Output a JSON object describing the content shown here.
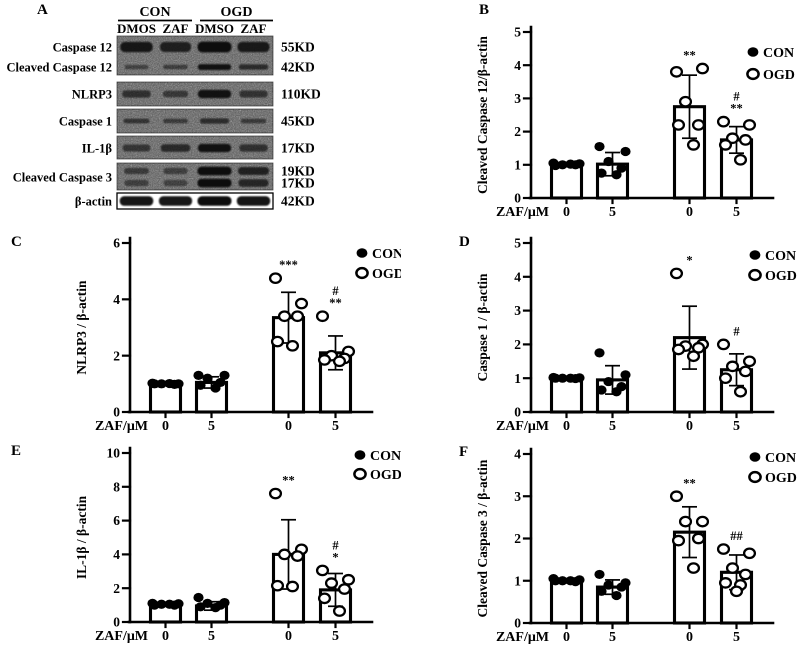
{
  "colors": {
    "ink": "#000000",
    "bar_fill": "#ffffff",
    "blot_bg": "#c9c9c9"
  },
  "panels": {
    "A": {
      "label": "A",
      "group_headers": [
        "CON",
        "OGD"
      ],
      "lane_headers": [
        "DMOS",
        "ZAF",
        "DMSO",
        "ZAF"
      ],
      "boxes": [
        {
          "bg": "noise",
          "rows": [
            {
              "label": "Caspase 12",
              "kd": "55KD",
              "band_h": 9,
              "intensities": [
                0.9,
                0.82,
                1.0,
                0.88
              ]
            },
            {
              "label": "Cleaved Caspase 12",
              "kd": "42KD",
              "band_h": 5,
              "intensities": [
                0.35,
                0.4,
                0.95,
                0.7
              ]
            }
          ]
        },
        {
          "bg": "noise",
          "rows": [
            {
              "label": "NLRP3",
              "kd": "110KD",
              "band_h": 7,
              "intensities": [
                0.65,
                0.45,
                0.95,
                0.62
              ]
            }
          ]
        },
        {
          "bg": "noise",
          "rows": [
            {
              "label": "Caspase 1",
              "kd": "45KD",
              "band_h": 5,
              "intensities": [
                0.5,
                0.42,
                0.68,
                0.44
              ]
            }
          ]
        },
        {
          "bg": "noise",
          "rows": [
            {
              "label": "IL-1β",
              "kd": "17KD",
              "band_h": 7,
              "intensities": [
                0.6,
                0.72,
                0.95,
                0.65
              ]
            }
          ]
        },
        {
          "bg": "noise",
          "label_center": "Cleaved Caspase 3",
          "rows": [
            {
              "kd": "19KD",
              "band_h": 7,
              "intensities": [
                0.42,
                0.38,
                1.0,
                0.8
              ]
            },
            {
              "kd": "17KD",
              "band_h": 7,
              "intensities": [
                0.38,
                0.35,
                1.0,
                0.75
              ]
            }
          ]
        },
        {
          "bg": "white",
          "rows": [
            {
              "label": "β-actin",
              "kd": "42KD",
              "band_h": 8,
              "intensities": [
                0.97,
                0.95,
                1.0,
                0.96
              ]
            }
          ]
        }
      ]
    }
  },
  "chart_data": [
    {
      "panel": "B",
      "type": "bar",
      "ylabel": "Cleaved Caspase 12/β-actin",
      "ylim": [
        0,
        5
      ],
      "yticks": [
        0,
        1,
        2,
        3,
        4,
        5
      ],
      "xlabel": "ZAF/μM",
      "categories": [
        "0",
        "5",
        "0",
        "5"
      ],
      "legend": [
        {
          "label": "CON",
          "marker": "filled"
        },
        {
          "label": "OGD",
          "marker": "open"
        }
      ],
      "bars": [
        {
          "group": "CON",
          "x": "0",
          "mean": 1.0,
          "sd": 0.05,
          "marker": "filled",
          "annotation": [],
          "points": [
            1.05,
            1.03,
            1.0,
            1.0,
            0.98,
            1.02
          ]
        },
        {
          "group": "CON",
          "x": "5",
          "mean": 1.02,
          "sd": 0.35,
          "marker": "filled",
          "annotation": [],
          "points": [
            1.55,
            1.4,
            1.1,
            0.9,
            0.75,
            0.7
          ]
        },
        {
          "group": "OGD",
          "x": "0",
          "mean": 2.75,
          "sd": 0.95,
          "marker": "open",
          "annotation": [
            "**"
          ],
          "points": [
            3.8,
            3.9,
            2.9,
            2.2,
            2.2,
            1.6
          ]
        },
        {
          "group": "OGD",
          "x": "5",
          "mean": 1.75,
          "sd": 0.4,
          "marker": "open",
          "annotation": [
            "#",
            "**"
          ],
          "points": [
            2.3,
            2.2,
            1.8,
            1.75,
            1.6,
            1.15
          ]
        }
      ]
    },
    {
      "panel": "C",
      "type": "bar",
      "ylabel": "NLRP3 / β-actin",
      "ylim": [
        0,
        6
      ],
      "yticks": [
        0,
        2,
        4,
        6
      ],
      "xlabel": "ZAF/μM",
      "categories": [
        "0",
        "5",
        "0",
        "5"
      ],
      "legend": [
        {
          "label": "CON",
          "marker": "filled"
        },
        {
          "label": "OGD",
          "marker": "open"
        }
      ],
      "bars": [
        {
          "group": "CON",
          "x": "0",
          "mean": 1.0,
          "sd": 0.04,
          "marker": "filled",
          "annotation": [],
          "points": [
            1.02,
            1.0,
            1.0,
            0.98,
            1.0,
            1.01
          ]
        },
        {
          "group": "CON",
          "x": "5",
          "mean": 1.05,
          "sd": 0.2,
          "marker": "filled",
          "annotation": [],
          "points": [
            1.3,
            1.3,
            1.2,
            1.05,
            0.95,
            0.85
          ]
        },
        {
          "group": "OGD",
          "x": "0",
          "mean": 3.35,
          "sd": 0.9,
          "marker": "open",
          "annotation": [
            "***"
          ],
          "points": [
            4.75,
            3.85,
            3.4,
            3.4,
            2.5,
            2.35
          ]
        },
        {
          "group": "OGD",
          "x": "5",
          "mean": 2.1,
          "sd": 0.6,
          "marker": "open",
          "annotation": [
            "#",
            "**"
          ],
          "points": [
            3.4,
            2.15,
            2.0,
            1.9,
            1.85,
            1.8
          ]
        }
      ]
    },
    {
      "panel": "D",
      "type": "bar",
      "ylabel": "Caspase 1 / β-actin",
      "ylim": [
        0,
        5
      ],
      "yticks": [
        0,
        1,
        2,
        3,
        4,
        5
      ],
      "xlabel": "ZAF/μM",
      "categories": [
        "0",
        "5",
        "0",
        "5"
      ],
      "legend": [
        {
          "label": "CON",
          "marker": "filled"
        },
        {
          "label": "OGD",
          "marker": "open"
        }
      ],
      "bars": [
        {
          "group": "CON",
          "x": "0",
          "mean": 1.0,
          "sd": 0.04,
          "marker": "filled",
          "annotation": [],
          "points": [
            1.02,
            1.01,
            1.0,
            0.99,
            1.0,
            1.0
          ]
        },
        {
          "group": "CON",
          "x": "5",
          "mean": 0.95,
          "sd": 0.42,
          "marker": "filled",
          "annotation": [],
          "points": [
            1.75,
            1.1,
            0.9,
            0.75,
            0.65,
            0.6
          ]
        },
        {
          "group": "OGD",
          "x": "0",
          "mean": 2.2,
          "sd": 0.93,
          "marker": "open",
          "annotation": [
            "*"
          ],
          "points": [
            4.1,
            2.0,
            1.95,
            1.9,
            1.85,
            1.65
          ]
        },
        {
          "group": "OGD",
          "x": "5",
          "mean": 1.25,
          "sd": 0.47,
          "marker": "open",
          "annotation": [
            "#"
          ],
          "points": [
            2.0,
            1.5,
            1.35,
            1.2,
            1.0,
            0.6
          ]
        }
      ]
    },
    {
      "panel": "E",
      "type": "bar",
      "ylabel": "IL-1β / β-actin",
      "ylim": [
        0,
        10
      ],
      "yticks": [
        0,
        2,
        4,
        6,
        8,
        10
      ],
      "xlabel": "ZAF/μM",
      "categories": [
        "0",
        "5",
        "0",
        "5"
      ],
      "legend": [
        {
          "label": "CON",
          "marker": "filled"
        },
        {
          "label": "OGD",
          "marker": "open"
        }
      ],
      "bars": [
        {
          "group": "CON",
          "x": "0",
          "mean": 1.05,
          "sd": 0.07,
          "marker": "filled",
          "annotation": [],
          "points": [
            1.1,
            1.08,
            1.05,
            1.0,
            1.0,
            1.05
          ]
        },
        {
          "group": "CON",
          "x": "5",
          "mean": 0.95,
          "sd": 0.25,
          "marker": "filled",
          "annotation": [],
          "points": [
            1.45,
            1.15,
            1.1,
            1.0,
            0.9,
            0.85
          ]
        },
        {
          "group": "OGD",
          "x": "0",
          "mean": 4.0,
          "sd": 2.05,
          "marker": "open",
          "annotation": [
            "**"
          ],
          "points": [
            7.6,
            4.3,
            4.0,
            3.9,
            2.15,
            2.1
          ]
        },
        {
          "group": "OGD",
          "x": "5",
          "mean": 1.9,
          "sd": 0.97,
          "marker": "open",
          "annotation": [
            "#",
            "*"
          ],
          "points": [
            3.05,
            2.5,
            2.3,
            1.95,
            1.4,
            0.65
          ]
        }
      ]
    },
    {
      "panel": "F",
      "type": "bar",
      "ylabel": "Cleaved Caspase 3 / β-actin",
      "ylim": [
        0,
        4
      ],
      "yticks": [
        0,
        1,
        2,
        3,
        4
      ],
      "xlabel": "ZAF/μM",
      "categories": [
        "0",
        "5",
        "0",
        "5"
      ],
      "legend": [
        {
          "label": "CON",
          "marker": "filled"
        },
        {
          "label": "OGD",
          "marker": "open"
        }
      ],
      "bars": [
        {
          "group": "CON",
          "x": "0",
          "mean": 1.0,
          "sd": 0.05,
          "marker": "filled",
          "annotation": [],
          "points": [
            1.05,
            1.02,
            1.0,
            0.98,
            1.0,
            1.0
          ]
        },
        {
          "group": "CON",
          "x": "5",
          "mean": 0.85,
          "sd": 0.17,
          "marker": "filled",
          "annotation": [],
          "points": [
            1.15,
            0.95,
            0.9,
            0.85,
            0.75,
            0.65
          ]
        },
        {
          "group": "OGD",
          "x": "0",
          "mean": 2.15,
          "sd": 0.6,
          "marker": "open",
          "annotation": [
            "**"
          ],
          "points": [
            3.0,
            2.4,
            2.4,
            2.0,
            1.95,
            1.3
          ]
        },
        {
          "group": "OGD",
          "x": "5",
          "mean": 1.2,
          "sd": 0.41,
          "marker": "open",
          "annotation": [
            "##"
          ],
          "points": [
            1.75,
            1.65,
            1.3,
            1.15,
            0.95,
            0.9,
            0.75
          ]
        }
      ]
    }
  ]
}
